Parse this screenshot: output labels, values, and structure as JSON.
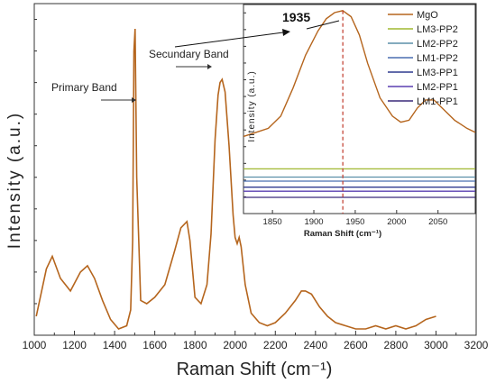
{
  "colors": {
    "mgo": "#b5651d",
    "lm3_pp2": "#a0b830",
    "lm2_pp2": "#5b8fa8",
    "lm1_pp2": "#4a6fb0",
    "lm3_pp1": "#2f3a8f",
    "lm2_pp1": "#5a3fb0",
    "lm1_pp1": "#3a2a7a",
    "marker": "#c0392b",
    "axis": "#333333"
  },
  "chart_data": [
    {
      "type": "line",
      "title": "",
      "xlabel": "Raman Shift (cm⁻¹)",
      "ylabel": "Intensity (a.u.)",
      "xlim": [
        1000,
        3200
      ],
      "xticks": [
        "1000",
        "1200",
        "1400",
        "1600",
        "1800",
        "2000",
        "2200",
        "2400",
        "2600",
        "2800",
        "3000",
        "3200"
      ],
      "y_ticks_labeled": false,
      "annotations": [
        "Primary Band",
        "Secundary Band"
      ],
      "series": [
        {
          "x": [
            1010,
            1060,
            1090,
            1130,
            1180,
            1230,
            1265,
            1300,
            1340,
            1380,
            1420,
            1460,
            1480,
            1490,
            1496,
            1502,
            1510,
            1530,
            1560,
            1600,
            1650,
            1700,
            1730,
            1760,
            1775,
            1800,
            1830,
            1860,
            1880,
            1900,
            1915,
            1925,
            1935,
            1950,
            1970,
            1990,
            2000,
            2010,
            2020,
            2030,
            2050,
            2080,
            2120,
            2160,
            2200,
            2250,
            2300,
            2330,
            2350,
            2380,
            2420,
            2460,
            2500,
            2550,
            2600,
            2650,
            2700,
            2750,
            2800,
            2850,
            2900,
            2950,
            3000
          ],
          "y": [
            0.06,
            0.21,
            0.25,
            0.18,
            0.14,
            0.2,
            0.22,
            0.18,
            0.11,
            0.05,
            0.02,
            0.03,
            0.08,
            0.3,
            0.9,
            0.97,
            0.5,
            0.11,
            0.1,
            0.12,
            0.16,
            0.27,
            0.34,
            0.36,
            0.3,
            0.12,
            0.1,
            0.16,
            0.32,
            0.62,
            0.76,
            0.8,
            0.81,
            0.77,
            0.6,
            0.38,
            0.31,
            0.29,
            0.31,
            0.28,
            0.16,
            0.07,
            0.04,
            0.03,
            0.04,
            0.07,
            0.11,
            0.14,
            0.14,
            0.13,
            0.09,
            0.06,
            0.04,
            0.03,
            0.02,
            0.02,
            0.03,
            0.02,
            0.03,
            0.02,
            0.03,
            0.05,
            0.06
          ]
        }
      ]
    },
    {
      "type": "line",
      "title": "",
      "xlabel": "Raman Shift (cm⁻¹)",
      "ylabel": "Intensity (a.u.)",
      "xlim": [
        1815,
        2095
      ],
      "xticks": [
        "1850",
        "1900",
        "1950",
        "2000",
        "2050"
      ],
      "y_ticks_labeled": false,
      "annotations": [
        "1935"
      ],
      "marker_x": 1935,
      "legend_position": "right",
      "series": [
        {
          "name": "MgO",
          "x": [
            1815,
            1830,
            1845,
            1860,
            1875,
            1890,
            1905,
            1915,
            1925,
            1935,
            1945,
            1955,
            1965,
            1980,
            1995,
            2005,
            2015,
            2025,
            2035,
            2045,
            2055,
            2070,
            2085,
            2095
          ],
          "y": [
            0.38,
            0.4,
            0.42,
            0.48,
            0.62,
            0.78,
            0.9,
            0.96,
            0.99,
            1.0,
            0.97,
            0.88,
            0.74,
            0.57,
            0.48,
            0.45,
            0.46,
            0.52,
            0.56,
            0.56,
            0.52,
            0.46,
            0.42,
            0.4
          ]
        },
        {
          "name": "LM3-PP2",
          "x": [
            1815,
            2095
          ],
          "y": [
            0.22,
            0.22
          ]
        },
        {
          "name": "LM2-PP2",
          "x": [
            1815,
            2095
          ],
          "y": [
            0.18,
            0.18
          ]
        },
        {
          "name": "LM1-PP2",
          "x": [
            1815,
            2095
          ],
          "y": [
            0.16,
            0.16
          ]
        },
        {
          "name": "LM3-PP1",
          "x": [
            1815,
            2095
          ],
          "y": [
            0.13,
            0.13
          ]
        },
        {
          "name": "LM2-PP1",
          "x": [
            1815,
            2095
          ],
          "y": [
            0.11,
            0.11
          ]
        },
        {
          "name": "LM1-PP1",
          "x": [
            1815,
            2095
          ],
          "y": [
            0.08,
            0.08
          ]
        }
      ]
    }
  ]
}
